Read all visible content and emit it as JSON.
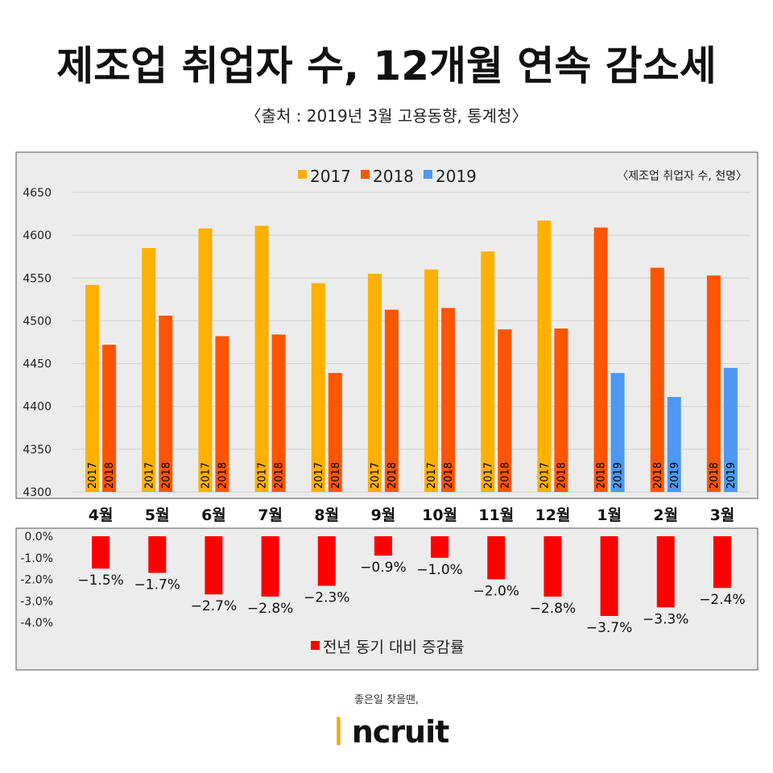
{
  "title": "제조업 취업자 수, 12개월 연속 감소세",
  "source": "〈출처 : 2019년 3월 고용동향, 통계청〉",
  "brand": {
    "tagline": "좋은일 찾을땐,",
    "mark": "ㅣ",
    "name": "ncruit",
    "accent": "#f7a600"
  },
  "colors": {
    "2017": "#ffb000",
    "2018": "#ff5500",
    "2019": "#4d98f0",
    "rate": "#ff0000",
    "panel": "#ececec"
  },
  "chart_data": [
    {
      "type": "bar",
      "unit_note": "〈제조업 취업자 수, 천명〉",
      "categories": [
        "4월",
        "5월",
        "6월",
        "7월",
        "8월",
        "9월",
        "10월",
        "11월",
        "12월",
        "1월",
        "2월",
        "3월"
      ],
      "ylim": [
        4300,
        4650
      ],
      "yticks": [
        "4650",
        "4600",
        "4550",
        "4500",
        "4450",
        "4400",
        "4350",
        "4300"
      ],
      "legend": "top-center",
      "grid": true,
      "series": [
        {
          "name": "2017",
          "values": [
            4542,
            4585,
            4608,
            4611,
            4544,
            4555,
            4560,
            4581,
            4617,
            null,
            null,
            null
          ]
        },
        {
          "name": "2018",
          "values": [
            4472,
            4506,
            4482,
            4484,
            4439,
            4513,
            4515,
            4490,
            4491,
            4609,
            4562,
            4553
          ]
        },
        {
          "name": "2019",
          "values": [
            null,
            null,
            null,
            null,
            null,
            null,
            null,
            null,
            null,
            4439,
            4411,
            4445
          ]
        }
      ]
    },
    {
      "type": "bar",
      "categories": [
        "4월",
        "5월",
        "6월",
        "7월",
        "8월",
        "9월",
        "10월",
        "11월",
        "12월",
        "1월",
        "2월",
        "3월"
      ],
      "ylim": [
        -4.0,
        0.0
      ],
      "yticks": [
        "0.0%",
        "-1.0%",
        "-2.0%",
        "-3.0%",
        "-4.0%"
      ],
      "legend": "bottom-center",
      "grid": false,
      "series": [
        {
          "name": "전년 동기 대비 증감률",
          "values": [
            -1.5,
            -1.7,
            -2.7,
            -2.8,
            -2.3,
            -0.9,
            -1.0,
            -2.0,
            -2.8,
            -3.7,
            -3.3,
            -2.4
          ]
        }
      ],
      "labels": [
        "−1.5%",
        "−1.7%",
        "−2.7%",
        "−2.8%",
        "−2.3%",
        "−0.9%",
        "−1.0%",
        "−2.0%",
        "−2.8%",
        "−3.7%",
        "−3.3%",
        "−2.4%"
      ]
    }
  ]
}
